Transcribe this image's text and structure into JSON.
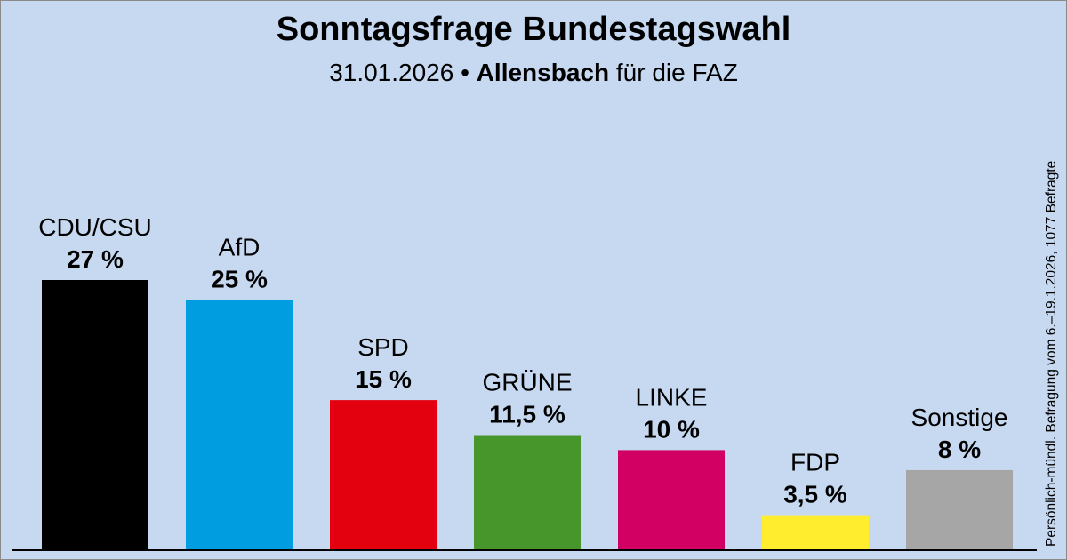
{
  "chart_data": {
    "type": "bar",
    "title": "Sonntagsfrage Bundestagswahl",
    "subtitle_date": "31.01.2026",
    "subtitle_separator": "•",
    "subtitle_institute": "Allensbach",
    "subtitle_client": "für die FAZ",
    "note": "Persönlich-mündl. Befragung vom 6.–19.1.2026, 1077 Befragte",
    "ylim": [
      0,
      27
    ],
    "categories": [
      "CDU/CSU",
      "AfD",
      "SPD",
      "GRÜNE",
      "LINKE",
      "FDP",
      "Sonstige"
    ],
    "values": [
      27,
      25,
      15,
      11.5,
      10,
      3.5,
      8
    ],
    "value_labels": [
      "27 %",
      "25 %",
      "15 %",
      "11,5 %",
      "10 %",
      "3,5 %",
      "8 %"
    ],
    "colors": [
      "#000000",
      "#009ee0",
      "#e3000f",
      "#46962b",
      "#d10062",
      "#ffed2e",
      "#a6a6a6"
    ]
  }
}
